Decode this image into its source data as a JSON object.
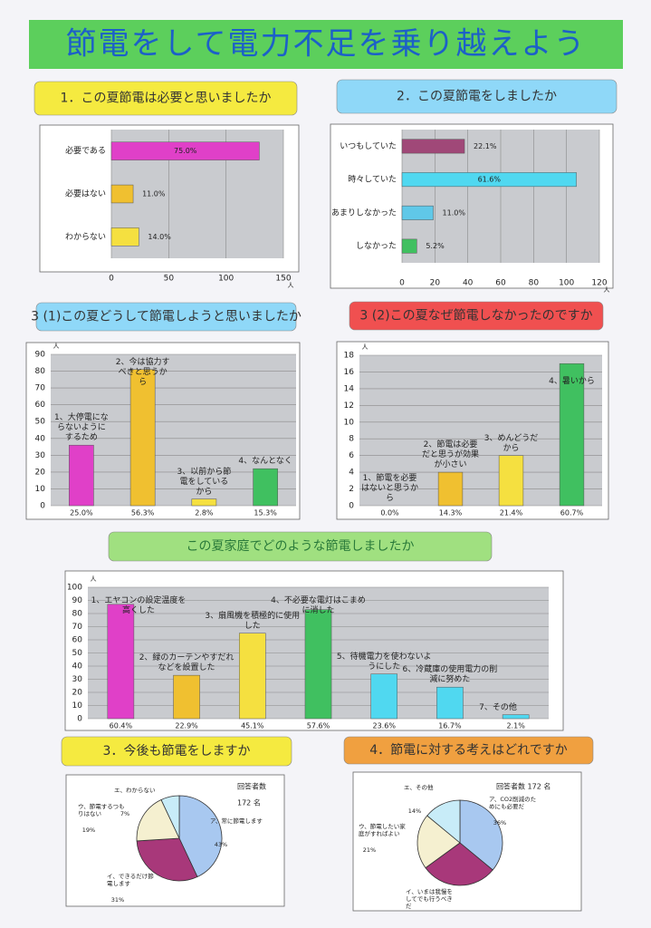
{
  "title": "節電をして電力不足を乗り越えよう",
  "chart_data": [
    {
      "type": "hbar",
      "title": "1．この夏節電は必要と思いましたか",
      "categories": [
        "必要である",
        "必要はない",
        "わからない"
      ],
      "values": [
        129,
        19,
        24
      ],
      "share_labels": [
        "75.0%",
        "11.0%",
        "14.0%"
      ],
      "colors": [
        "#e040c8",
        "#f0c030",
        "#f5e040"
      ],
      "xlim": [
        0,
        150
      ],
      "xticks": [
        0,
        50,
        100,
        150
      ],
      "unit": "人",
      "grid": true
    },
    {
      "type": "hbar",
      "title": "2．この夏節電をしましたか",
      "categories": [
        "いつもしていた",
        "時々していた",
        "あまりしなかった",
        "しなかった"
      ],
      "values": [
        38,
        106,
        19,
        9
      ],
      "share_labels": [
        "22.1%",
        "61.6%",
        "11.0%",
        "5.2%"
      ],
      "colors": [
        "#a04878",
        "#50d8f0",
        "#60c8e8",
        "#40c060"
      ],
      "xlim": [
        0,
        120
      ],
      "xticks": [
        0,
        20,
        40,
        60,
        80,
        100,
        120
      ],
      "unit": "人",
      "grid": true
    },
    {
      "type": "vbar",
      "title": "3 (1)この夏どうして節電しようと思いましたか",
      "categories": [
        "1、大停電にならないようにするため",
        "2、今は協力すべきと思うから",
        "3、以前から節電をしているから",
        "4、なんとなく"
      ],
      "values": [
        36,
        81,
        4,
        22
      ],
      "share_labels": [
        "25.0%",
        "56.3%",
        "2.8%",
        "15.3%"
      ],
      "colors": [
        "#e040c8",
        "#f0c030",
        "#f5e040",
        "#40c060"
      ],
      "ylim": [
        0,
        90
      ],
      "yticks": [
        0,
        10,
        20,
        30,
        40,
        50,
        60,
        70,
        80,
        90
      ],
      "unit": "人",
      "grid": true
    },
    {
      "type": "vbar",
      "title": "3 (2)この夏なぜ節電しなかったのですか",
      "categories": [
        "1、節電を必要はないと思うから",
        "2、節電は必要だと思うが効果が小さい",
        "3、めんどうだから",
        "4、暑いから"
      ],
      "values": [
        0,
        4,
        6,
        17
      ],
      "share_labels": [
        "0.0%",
        "14.3%",
        "21.4%",
        "60.7%"
      ],
      "colors": [
        "#e040c8",
        "#f0c030",
        "#f5e040",
        "#40c060"
      ],
      "ylim": [
        0,
        18
      ],
      "yticks": [
        0,
        2,
        4,
        6,
        8,
        10,
        12,
        14,
        16,
        18
      ],
      "unit": "人",
      "grid": true
    },
    {
      "type": "vbar",
      "title": "この夏家庭でどのような節電しましたか",
      "categories": [
        "1、エヤコンの設定温度を高くした",
        "2、緑のカーテンやすだれなどを設置した",
        "3、扇風機を積極的に使用した",
        "4、不必要な電灯はこまめに消した",
        "5、待機電力を使わないようにした",
        "6、冷蔵庫の使用電力の削減に努めた",
        "7、その他"
      ],
      "values": [
        87,
        33,
        65,
        83,
        34,
        24,
        3
      ],
      "share_labels": [
        "60.4%",
        "22.9%",
        "45.1%",
        "57.6%",
        "23.6%",
        "16.7%",
        "2.1%"
      ],
      "colors": [
        "#e040c8",
        "#f0c030",
        "#f5e040",
        "#40c060",
        "#50d8f0",
        "#50d8f0",
        "#50d8f0"
      ],
      "ylim": [
        0,
        100
      ],
      "yticks": [
        0,
        10,
        20,
        30,
        40,
        50,
        60,
        70,
        80,
        90,
        100
      ],
      "unit": "人",
      "grid": true
    },
    {
      "type": "pie",
      "title": "3．今後も節電をしますか",
      "categories": [
        "ア、常に節電します",
        "イ、できるだけ節電します",
        "ウ、節電するつもりはない",
        "エ、わからない"
      ],
      "values": [
        43,
        31,
        19,
        7
      ],
      "value_labels": [
        "43%",
        "31%",
        "19%",
        "7%"
      ],
      "colors": [
        "#a8c8f0",
        "#a8387a",
        "#f5f0d0",
        "#c8ecf8"
      ],
      "annotations": [
        "回答者数",
        "172 名"
      ]
    },
    {
      "type": "pie",
      "title": "4．節電に対する考えはどれですか",
      "categories": [
        "ア、CO2削減のためにも必要だ",
        "イ、いまは我慢をしてでも行うべきだ",
        "ウ、節電したい家庭がすればよい",
        "エ、その他"
      ],
      "values": [
        36,
        29,
        21,
        14
      ],
      "value_labels": [
        "36%",
        null,
        "21%",
        "14%"
      ],
      "colors": [
        "#a8c8f0",
        "#a8387a",
        "#f5f0d0",
        "#c8ecf8"
      ],
      "annotations": [
        "回答者数 172 名"
      ]
    }
  ]
}
